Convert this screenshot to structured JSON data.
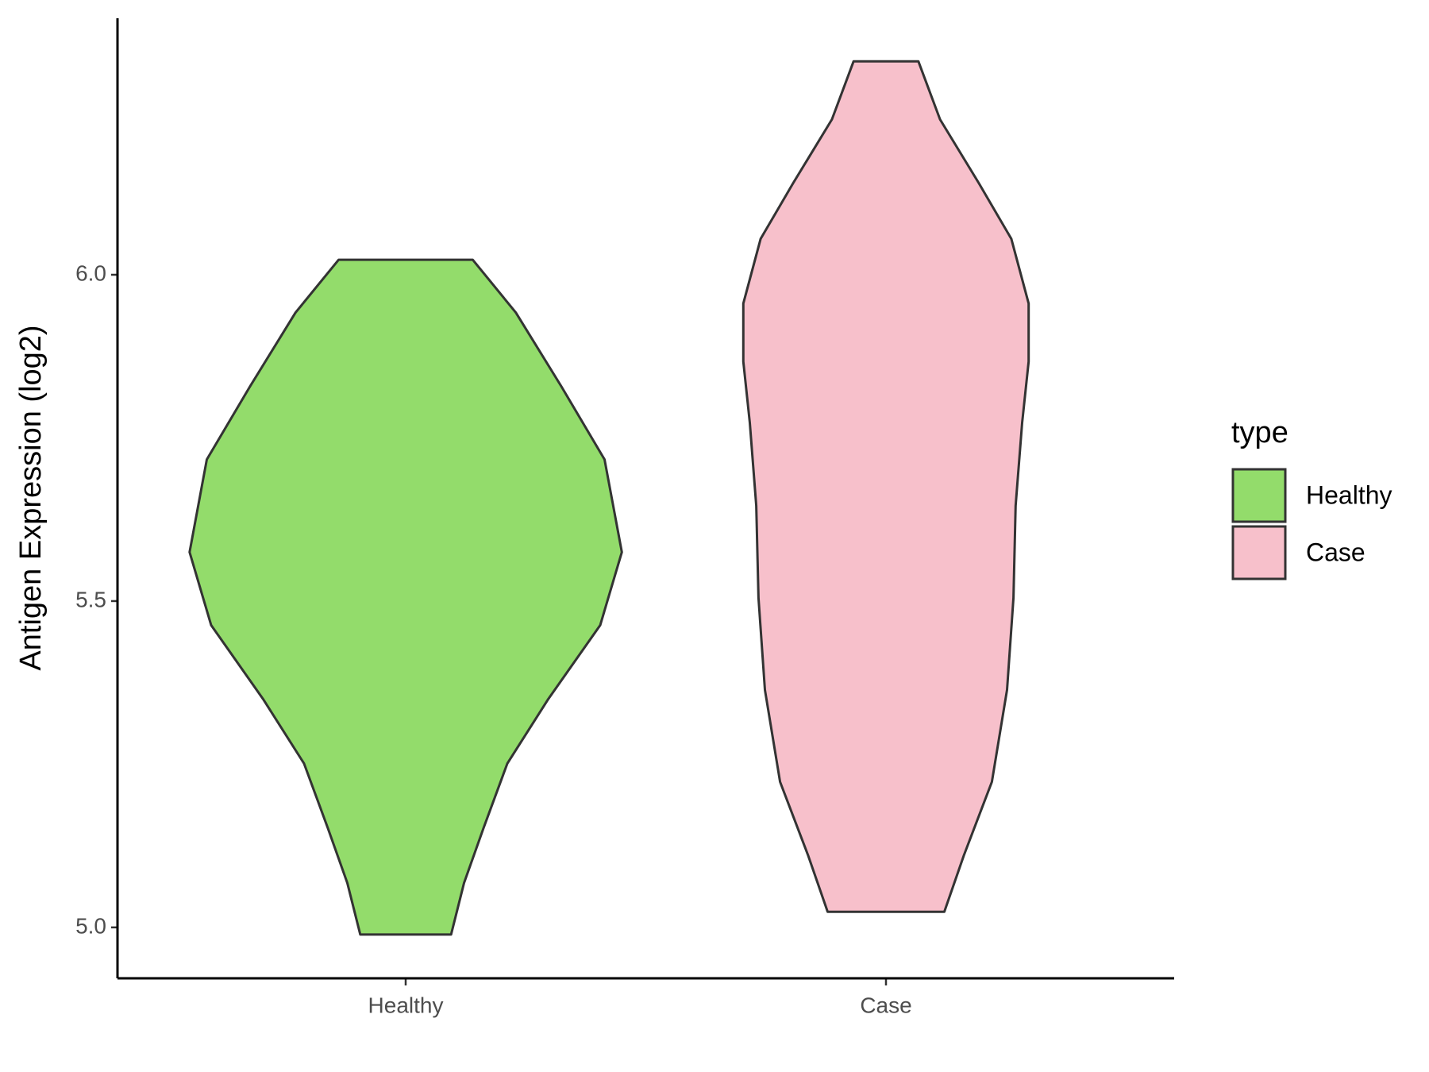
{
  "chart_data": {
    "type": "violin",
    "y_label": "Antigen Expression (log2)",
    "categories": [
      "Healthy",
      "Case"
    ],
    "legend_title": "type",
    "legend_position": "right",
    "ylim": [
      4.922,
      6.393
    ],
    "yticks": [
      {
        "value": 5,
        "label": "5.0"
      },
      5.5,
      {
        "value": 6,
        "label": "6.0"
      }
    ],
    "series": [
      {
        "name": "Healthy",
        "color": "#93dc6b",
        "y": [
          6.023,
          5.942,
          5.829,
          5.717,
          5.575,
          5.463,
          5.35,
          5.251,
          5.152,
          5.068,
          4.989
        ],
        "width": [
          0.31,
          0.51,
          0.72,
          0.92,
          1.0,
          0.9,
          0.66,
          0.47,
          0.36,
          0.27,
          0.21
        ]
      },
      {
        "name": "Case",
        "color": "#f7c0cb",
        "y": [
          6.327,
          6.238,
          6.14,
          6.055,
          5.956,
          5.867,
          5.773,
          5.646,
          5.505,
          5.364,
          5.223,
          5.11,
          5.024
        ],
        "width": [
          0.15,
          0.25,
          0.43,
          0.58,
          0.66,
          0.66,
          0.63,
          0.6,
          0.59,
          0.56,
          0.49,
          0.36,
          0.27
        ]
      }
    ]
  }
}
